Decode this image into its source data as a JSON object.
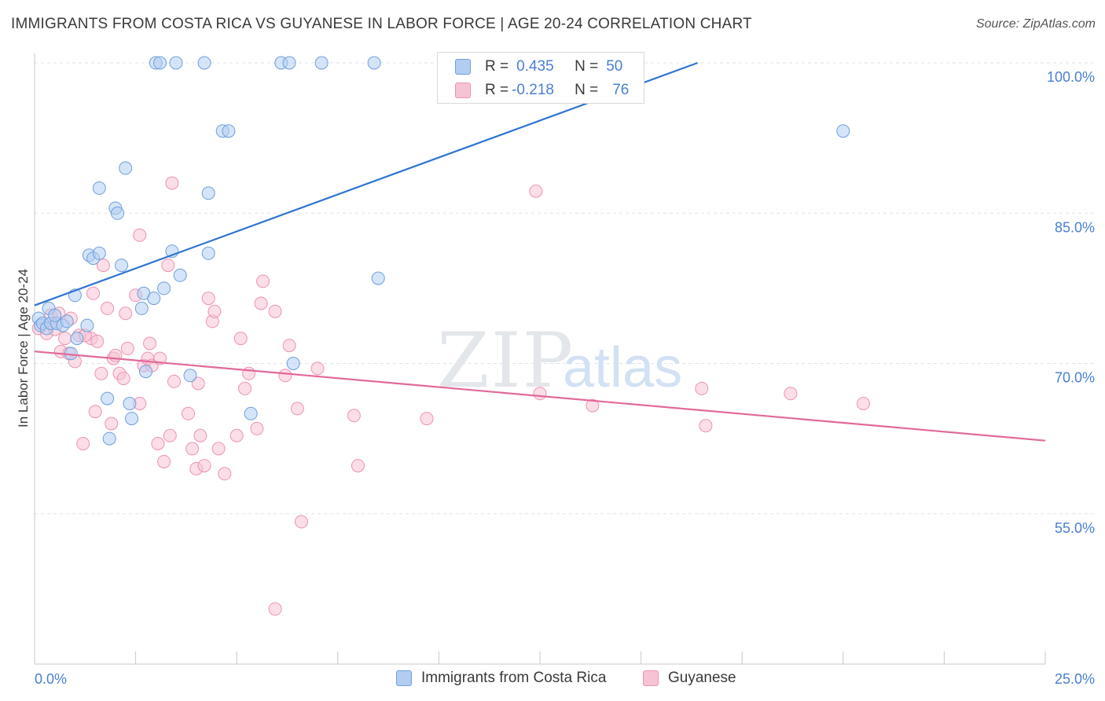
{
  "title": "IMMIGRANTS FROM COSTA RICA VS GUYANESE IN LABOR FORCE | AGE 20-24 CORRELATION CHART",
  "source": "Source: ZipAtlas.com",
  "watermark": {
    "zip": "ZIP",
    "atlas": "atlas"
  },
  "colors": {
    "blue_fill": "#b3cdf2",
    "blue_stroke": "#6f9fdc",
    "blue_line": "#2f74d0",
    "pink_fill": "#f7c3d4",
    "pink_stroke": "#ec93b0",
    "pink_line": "#e2699a",
    "tick_label": "#4a7fd1",
    "grid": "#dde3ea"
  },
  "stats": {
    "row1": {
      "r_label": "R =",
      "r_value": "0.435",
      "n_label": "N =",
      "n_value": "50"
    },
    "row2": {
      "r_label": "R =",
      "r_value": "-0.218",
      "n_label": "N =",
      "n_value": "76"
    }
  },
  "legend": {
    "series1": "Immigrants from Costa Rica",
    "series2": "Guyanese"
  },
  "chart_data": {
    "type": "scatter",
    "xlabel": "",
    "ylabel": "In Labor Force | Age 20-24",
    "xlim": [
      0,
      25
    ],
    "ylim": [
      40,
      100
    ],
    "x_tick_labels": [
      "0.0%",
      "25.0%"
    ],
    "y_ticks": [
      55,
      70,
      85,
      100
    ],
    "y_tick_labels": [
      "55.0%",
      "70.0%",
      "85.0%",
      "100.0%"
    ],
    "grid": true,
    "series": [
      {
        "name": "Immigrants from Costa Rica",
        "color": "blue",
        "trend": {
          "x": [
            0,
            16.4
          ],
          "y": [
            75.8,
            100
          ]
        },
        "points": [
          [
            0.1,
            74.5
          ],
          [
            0.15,
            73.8
          ],
          [
            0.2,
            74.0
          ],
          [
            0.3,
            73.5
          ],
          [
            0.35,
            75.5
          ],
          [
            0.4,
            74.0
          ],
          [
            0.55,
            74.0
          ],
          [
            0.7,
            73.8
          ],
          [
            0.9,
            71.0
          ],
          [
            1.0,
            76.8
          ],
          [
            1.05,
            72.5
          ],
          [
            1.3,
            73.8
          ],
          [
            1.35,
            80.8
          ],
          [
            1.45,
            80.5
          ],
          [
            1.6,
            81.0
          ],
          [
            1.6,
            87.5
          ],
          [
            1.8,
            66.5
          ],
          [
            1.85,
            62.5
          ],
          [
            2.0,
            85.5
          ],
          [
            2.05,
            85.0
          ],
          [
            2.15,
            79.8
          ],
          [
            2.25,
            89.5
          ],
          [
            2.35,
            66.0
          ],
          [
            2.4,
            64.5
          ],
          [
            2.65,
            75.5
          ],
          [
            2.7,
            77.0
          ],
          [
            2.75,
            69.2
          ],
          [
            2.95,
            76.5
          ],
          [
            3.0,
            100
          ],
          [
            3.1,
            100
          ],
          [
            3.2,
            77.5
          ],
          [
            3.4,
            81.2
          ],
          [
            3.5,
            100
          ],
          [
            3.6,
            78.8
          ],
          [
            3.85,
            68.8
          ],
          [
            4.2,
            100
          ],
          [
            4.3,
            87.0
          ],
          [
            4.3,
            81.0
          ],
          [
            4.65,
            93.2
          ],
          [
            4.8,
            93.2
          ],
          [
            5.35,
            65.0
          ],
          [
            6.1,
            100
          ],
          [
            6.3,
            100
          ],
          [
            6.4,
            70.0
          ],
          [
            7.1,
            100
          ],
          [
            8.4,
            100
          ],
          [
            8.5,
            78.5
          ],
          [
            20.0,
            93.2
          ],
          [
            0.5,
            74.8
          ],
          [
            0.8,
            74.2
          ]
        ]
      },
      {
        "name": "Guyanese",
        "color": "pink",
        "trend": {
          "x": [
            0,
            25
          ],
          "y": [
            71.2,
            62.3
          ]
        },
        "points": [
          [
            0.1,
            73.5
          ],
          [
            0.3,
            73.0
          ],
          [
            0.4,
            74.8
          ],
          [
            0.5,
            73.4
          ],
          [
            0.6,
            75.0
          ],
          [
            0.65,
            71.2
          ],
          [
            0.75,
            72.5
          ],
          [
            0.85,
            71.0
          ],
          [
            0.9,
            74.5
          ],
          [
            1.0,
            70.2
          ],
          [
            1.1,
            72.8
          ],
          [
            1.2,
            62.0
          ],
          [
            1.4,
            72.5
          ],
          [
            1.45,
            77.0
          ],
          [
            1.5,
            65.2
          ],
          [
            1.55,
            72.2
          ],
          [
            1.65,
            69.0
          ],
          [
            1.7,
            79.8
          ],
          [
            1.8,
            75.5
          ],
          [
            1.9,
            64.0
          ],
          [
            1.95,
            70.5
          ],
          [
            2.0,
            70.8
          ],
          [
            2.1,
            69.0
          ],
          [
            2.2,
            68.5
          ],
          [
            2.25,
            75.0
          ],
          [
            2.3,
            71.5
          ],
          [
            2.5,
            76.8
          ],
          [
            2.6,
            82.8
          ],
          [
            2.6,
            66.0
          ],
          [
            2.7,
            69.8
          ],
          [
            2.8,
            70.5
          ],
          [
            2.9,
            69.8
          ],
          [
            3.05,
            62.0
          ],
          [
            3.1,
            70.5
          ],
          [
            3.2,
            60.2
          ],
          [
            3.3,
            79.8
          ],
          [
            3.35,
            62.8
          ],
          [
            3.4,
            88.0
          ],
          [
            3.45,
            68.2
          ],
          [
            3.8,
            65.0
          ],
          [
            3.9,
            61.5
          ],
          [
            4.0,
            59.5
          ],
          [
            4.05,
            68.0
          ],
          [
            4.1,
            62.8
          ],
          [
            4.2,
            59.8
          ],
          [
            4.3,
            76.5
          ],
          [
            4.4,
            74.2
          ],
          [
            4.45,
            75.2
          ],
          [
            4.55,
            61.5
          ],
          [
            4.7,
            59.0
          ],
          [
            5.0,
            62.8
          ],
          [
            5.1,
            72.5
          ],
          [
            5.2,
            67.5
          ],
          [
            5.5,
            63.5
          ],
          [
            5.6,
            76.0
          ],
          [
            5.65,
            78.2
          ],
          [
            5.95,
            45.5
          ],
          [
            5.95,
            75.2
          ],
          [
            6.2,
            68.8
          ],
          [
            6.3,
            71.8
          ],
          [
            6.5,
            65.5
          ],
          [
            6.6,
            54.2
          ],
          [
            7.0,
            69.5
          ],
          [
            7.9,
            64.8
          ],
          [
            8.0,
            59.8
          ],
          [
            9.7,
            64.5
          ],
          [
            12.4,
            87.2
          ],
          [
            12.5,
            67.0
          ],
          [
            13.8,
            65.8
          ],
          [
            16.5,
            67.5
          ],
          [
            16.6,
            63.8
          ],
          [
            18.7,
            67.0
          ],
          [
            20.5,
            66.0
          ],
          [
            1.25,
            72.8
          ],
          [
            2.85,
            72.0
          ],
          [
            5.3,
            69.0
          ]
        ]
      }
    ]
  }
}
